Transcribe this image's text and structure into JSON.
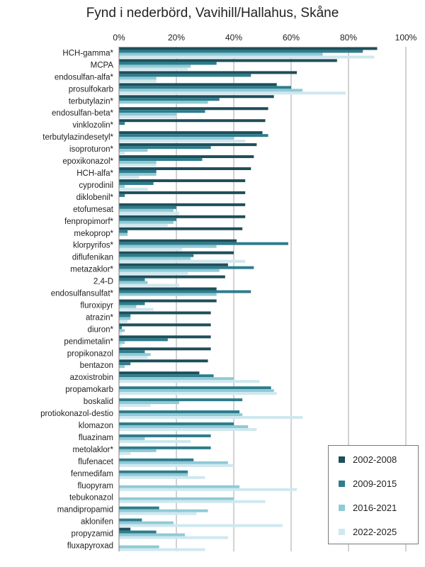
{
  "chart_data": {
    "type": "bar",
    "orientation": "horizontal",
    "title": "Fynd i nederbörd, Vavihill/Hallahus,  Skåne",
    "xlim": [
      0,
      100
    ],
    "x_ticks": [
      "0%",
      "20%",
      "40%",
      "60%",
      "80%",
      "100%"
    ],
    "grid": "vertical",
    "legend_position": "bottom-right",
    "colors": [
      "#1f4e5a",
      "#2e7d8c",
      "#8fcad6",
      "#cfe8ef"
    ],
    "categories": [
      "HCH-gamma*",
      "MCPA",
      "endosulfan-alfa*",
      "prosulfokarb",
      "terbutylazin*",
      "endosulfan-beta*",
      "vinklozolin*",
      "terbutylazindesetyl*",
      "isoproturon*",
      "epoxikonazol*",
      "HCH-alfa*",
      "cyprodinil",
      "diklobenil*",
      "etofumesat",
      "fenpropimorf*",
      "mekoprop*",
      "klorpyrifos*",
      "diflufenikan",
      "metazaklor*",
      "2,4-D",
      "endosulfansulfat*",
      "fluroxipyr",
      "atrazin*",
      "diuron*",
      "pendimetalin*",
      "propikonazol",
      "bentazon",
      "azoxistrobin",
      "propamokarb",
      "boskalid",
      "protiokonazol-destio",
      "klomazon",
      "fluazinam",
      "metolaklor*",
      "flufenacet",
      "fenmedifam",
      "fluopyram",
      "tebukonazol",
      "mandipropamid",
      "aklonifen",
      "propyzamid",
      "fluxapyroxad"
    ],
    "series": [
      {
        "name": "2002-2008",
        "values": [
          90,
          76,
          62,
          55,
          54,
          52,
          51,
          50,
          48,
          47,
          46,
          44,
          44,
          44,
          44,
          43,
          41,
          40,
          38,
          37,
          34,
          34,
          32,
          32,
          32,
          32,
          31,
          28,
          0,
          0,
          0,
          0,
          0,
          0,
          0,
          0,
          0,
          0,
          0,
          0,
          4,
          0
        ]
      },
      {
        "name": "2009-2015",
        "values": [
          85,
          34,
          46,
          60,
          35,
          30,
          2,
          52,
          32,
          29,
          13,
          12,
          2,
          20,
          20,
          3,
          59,
          26,
          47,
          9,
          46,
          9,
          4,
          1,
          17,
          9,
          4,
          33,
          53,
          43,
          42,
          40,
          32,
          32,
          26,
          24,
          0,
          0,
          14,
          8,
          13,
          0
        ]
      },
      {
        "name": "2016-2021",
        "values": [
          71,
          25,
          13,
          64,
          31,
          20,
          0,
          40,
          10,
          13,
          13,
          2,
          0,
          19,
          19,
          3,
          34,
          25,
          35,
          10,
          34,
          6,
          4,
          2,
          2,
          11,
          2,
          40,
          54,
          21,
          43,
          45,
          9,
          13,
          38,
          24,
          42,
          40,
          31,
          19,
          23,
          14
        ]
      },
      {
        "name": "2022-2025",
        "values": [
          89,
          24,
          13,
          79,
          0,
          20,
          0,
          44,
          2,
          13,
          7,
          10,
          0,
          21,
          17,
          0,
          22,
          44,
          24,
          21,
          0,
          12,
          3,
          1,
          1,
          10,
          0,
          49,
          55,
          11,
          64,
          48,
          25,
          4,
          40,
          30,
          62,
          51,
          27,
          57,
          38,
          30
        ]
      }
    ]
  }
}
